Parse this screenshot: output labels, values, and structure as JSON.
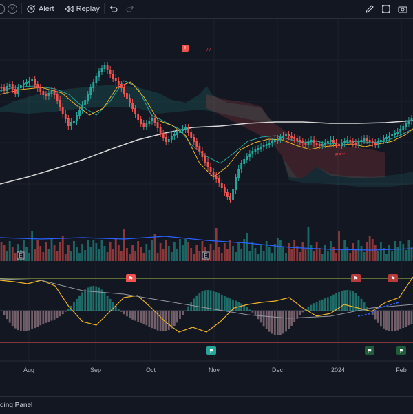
{
  "toolbar": {
    "indicator_icon_letter": "V",
    "alert_label": "Alert",
    "replay_label": "Replay"
  },
  "chart": {
    "x_axis_labels": [
      "Aug",
      "Sep",
      "Oct",
      "Nov",
      "Dec",
      "2024",
      "Feb"
    ],
    "earnings_marker": "E",
    "top_signal_label": "77",
    "psy_label": "PSY",
    "up_color": "#26a69a",
    "down_color": "#ef5350",
    "background": "#131722"
  },
  "bottom": {
    "panel_label": "ding Panel"
  }
}
